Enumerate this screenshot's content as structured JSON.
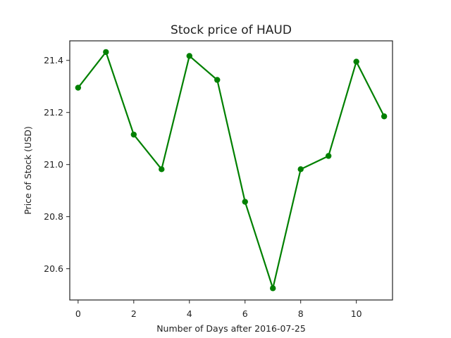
{
  "chart_data": {
    "type": "line",
    "title": "Stock price of HAUD",
    "xlabel": "Number of Days after 2016-07-25",
    "ylabel": "Price of Stock (USD)",
    "xlim": [
      -0.3,
      11.3
    ],
    "ylim": [
      20.48,
      21.475
    ],
    "xticks": [
      0,
      2,
      4,
      6,
      8,
      10
    ],
    "yticks": [
      20.6,
      20.8,
      21.0,
      21.2,
      21.4
    ],
    "grid": false,
    "legend": "none",
    "series": [
      {
        "color": "#008000",
        "marker": "circle",
        "x": [
          0,
          1,
          2,
          3,
          4,
          5,
          6,
          7,
          8,
          9,
          10,
          11
        ],
        "y": [
          21.295,
          21.432,
          21.115,
          20.982,
          21.417,
          21.325,
          20.857,
          20.525,
          20.982,
          21.033,
          21.395,
          21.185
        ]
      }
    ]
  }
}
